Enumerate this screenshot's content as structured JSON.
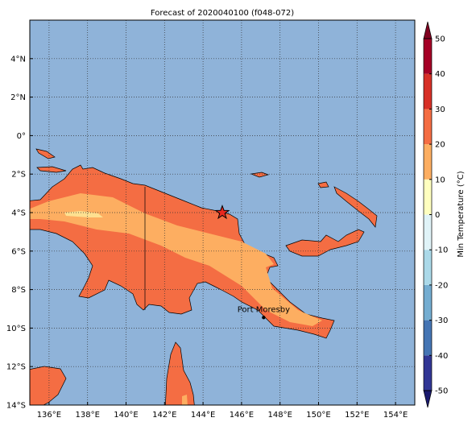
{
  "title": "Forecast of 2020040100 (f048-072)",
  "map": {
    "xlim": [
      135,
      155
    ],
    "ylim": [
      -14,
      6
    ],
    "xticks": [
      {
        "value": 136,
        "label": "136°E"
      },
      {
        "value": 138,
        "label": "138°E"
      },
      {
        "value": 140,
        "label": "140°E"
      },
      {
        "value": 142,
        "label": "142°E"
      },
      {
        "value": 144,
        "label": "144°E"
      },
      {
        "value": 146,
        "label": "146°E"
      },
      {
        "value": 148,
        "label": "148°E"
      },
      {
        "value": 150,
        "label": "150°E"
      },
      {
        "value": 152,
        "label": "152°E"
      },
      {
        "value": 154,
        "label": "154°E"
      }
    ],
    "yticks": [
      {
        "value": 4,
        "label": "4°N"
      },
      {
        "value": 2,
        "label": "2°N"
      },
      {
        "value": 0,
        "label": "0°"
      },
      {
        "value": -2,
        "label": "2°S"
      },
      {
        "value": -4,
        "label": "4°S"
      },
      {
        "value": -6,
        "label": "6°S"
      },
      {
        "value": -8,
        "label": "8°S"
      },
      {
        "value": -10,
        "label": "10°S"
      },
      {
        "value": -12,
        "label": "12°S"
      },
      {
        "value": -14,
        "label": "14°S"
      }
    ],
    "ocean_color": "#8fb3d9",
    "star": {
      "lon": 145,
      "lat": -4,
      "color": "#e8281e"
    },
    "city": {
      "name": "Port Moresby",
      "lon": 147.15,
      "lat": -9.45
    }
  },
  "colorbar": {
    "label": "Min Temperature (°C)",
    "ticks": [
      -50,
      -40,
      -30,
      -20,
      -10,
      0,
      10,
      20,
      30,
      40,
      50
    ],
    "colors": [
      "#313695",
      "#4575b4",
      "#74add1",
      "#abd9e9",
      "#e0f3f8",
      "#ffffbf",
      "#fdae61",
      "#f46d43",
      "#d73027",
      "#a50026"
    ],
    "under_color": "#1a1a6e",
    "over_color": "#800020"
  }
}
